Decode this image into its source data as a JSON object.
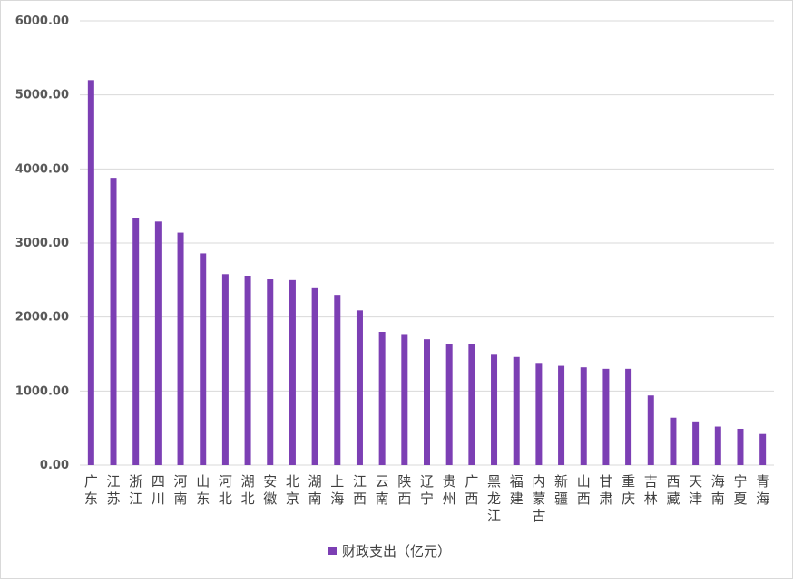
{
  "chart_data": {
    "type": "bar",
    "categories": [
      "广东",
      "江苏",
      "浙江",
      "四川",
      "河南",
      "山东",
      "河北",
      "湖北",
      "安徽",
      "北京",
      "湖南",
      "上海",
      "江西",
      "云南",
      "陕西",
      "辽宁",
      "贵州",
      "广西",
      "黑龙江",
      "福建",
      "内蒙古",
      "新疆",
      "山西",
      "甘肃",
      "重庆",
      "吉林",
      "西藏",
      "天津",
      "海南",
      "宁夏",
      "青海"
    ],
    "series": [
      {
        "name": "财政支出（亿元）",
        "color": "#7c3fb4",
        "values": [
          5200,
          3880,
          3340,
          3290,
          3140,
          2860,
          2580,
          2550,
          2510,
          2500,
          2390,
          2300,
          2090,
          1800,
          1770,
          1700,
          1640,
          1630,
          1490,
          1460,
          1380,
          1340,
          1320,
          1300,
          1300,
          940,
          640,
          590,
          520,
          490,
          420
        ]
      }
    ],
    "yticks": [
      "0.00",
      "1000.00",
      "2000.00",
      "3000.00",
      "4000.00",
      "5000.00",
      "6000.00"
    ],
    "ylim": [
      0,
      6000
    ],
    "grid": true,
    "legend": "bottom"
  }
}
